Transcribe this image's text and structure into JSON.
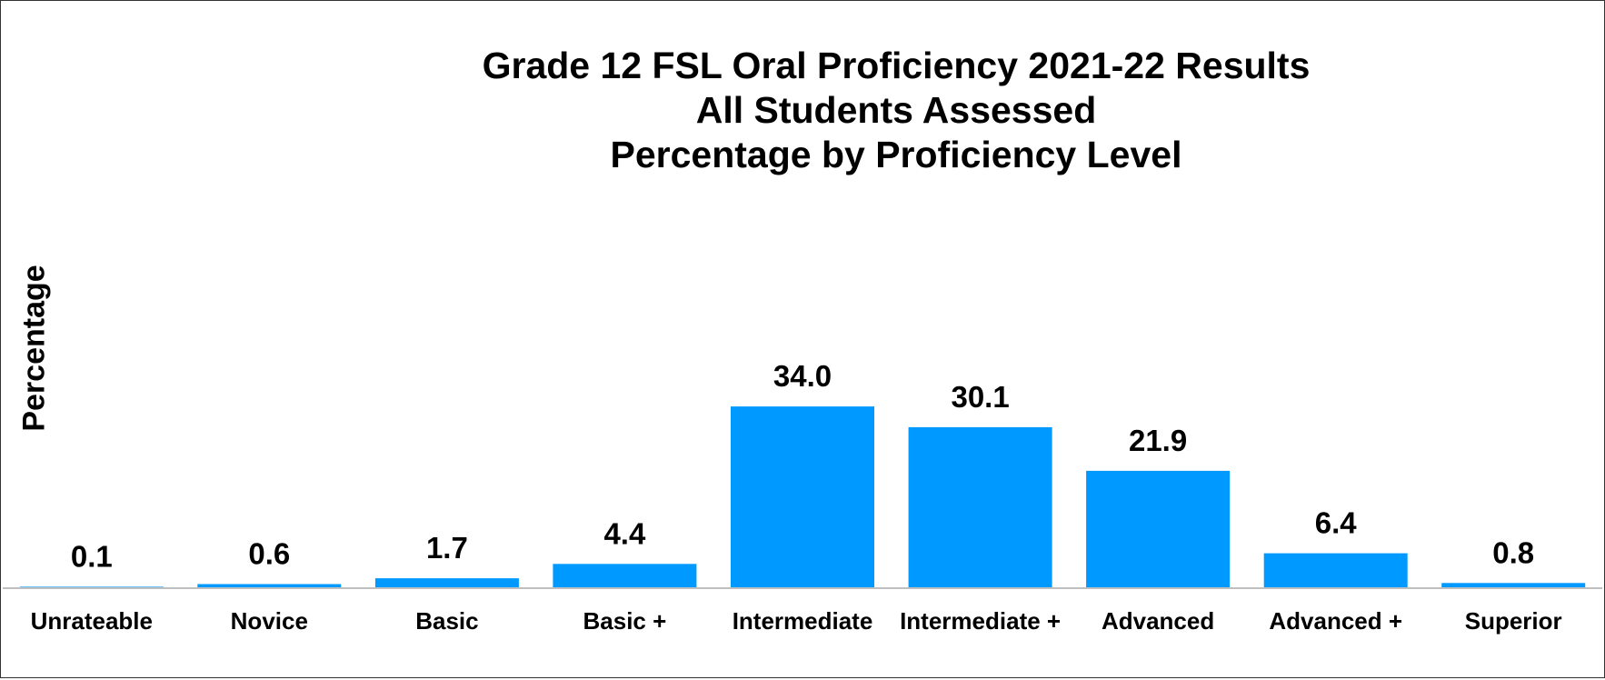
{
  "chart_data": {
    "type": "bar",
    "title": "Grade 12 FSL Oral Proficiency 2021-22 Results",
    "subtitle_lines": [
      "All Students Assessed",
      "Percentage by Proficiency Level"
    ],
    "xlabel": "",
    "ylabel": "Percentage",
    "categories": [
      "Unrateable",
      "Novice",
      "Basic",
      "Basic +",
      "Intermediate",
      "Intermediate +",
      "Advanced",
      "Advanced +",
      "Superior"
    ],
    "values": [
      0.1,
      0.6,
      1.7,
      4.4,
      34.0,
      30.1,
      21.9,
      6.4,
      0.8
    ],
    "value_labels": [
      "0.1",
      "0.6",
      "1.7",
      "4.4",
      "34.0",
      "30.1",
      "21.9",
      "6.4",
      "0.8"
    ],
    "ylim": [
      0,
      40
    ],
    "grid": false,
    "legend": "none",
    "bar_color": "#0099ff",
    "axis_color": "#bfbfbf"
  }
}
